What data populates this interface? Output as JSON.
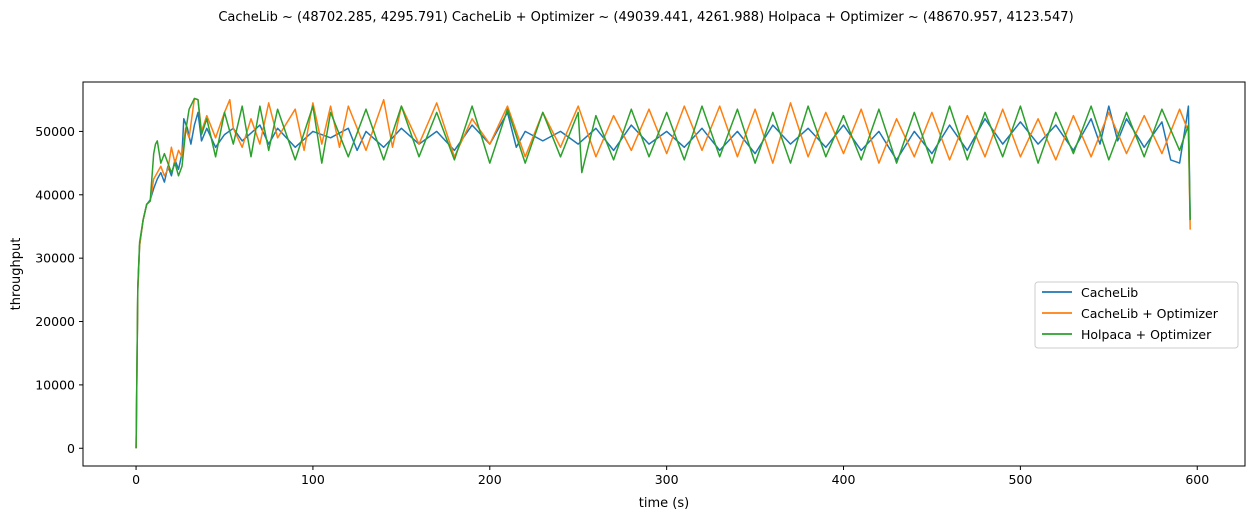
{
  "chart_data": {
    "type": "line",
    "title": "CacheLib ~ (48702.285, 4295.791)   CacheLib + Optimizer ~ (49039.441, 4261.988)   Holpaca + Optimizer ~ (48670.957, 4123.547)",
    "xlabel": "time (s)",
    "ylabel": "throughput",
    "xlim": [
      -30,
      627
    ],
    "ylim": [
      -2800,
      57800
    ],
    "xticks": [
      0,
      100,
      200,
      300,
      400,
      500,
      600
    ],
    "yticks": [
      0,
      10000,
      20000,
      30000,
      40000,
      50000
    ],
    "grid": false,
    "legend_position": "center-right",
    "series": [
      {
        "name": "CacheLib",
        "color": "#1f77b4",
        "points": [
          [
            0,
            0
          ],
          [
            1,
            25000
          ],
          [
            2,
            32000
          ],
          [
            4,
            36000
          ],
          [
            6,
            38500
          ],
          [
            8,
            39200
          ],
          [
            10,
            41000
          ],
          [
            12,
            42500
          ],
          [
            14,
            43500
          ],
          [
            16,
            42000
          ],
          [
            18,
            44500
          ],
          [
            20,
            43000
          ],
          [
            22,
            45500
          ],
          [
            24,
            44000
          ],
          [
            26,
            46500
          ],
          [
            27,
            52000
          ],
          [
            29,
            50500
          ],
          [
            31,
            48000
          ],
          [
            33,
            51000
          ],
          [
            35,
            53000
          ],
          [
            37,
            48500
          ],
          [
            40,
            50500
          ],
          [
            45,
            47500
          ],
          [
            50,
            49500
          ],
          [
            55,
            50500
          ],
          [
            60,
            48500
          ],
          [
            70,
            51000
          ],
          [
            75,
            48000
          ],
          [
            80,
            50500
          ],
          [
            90,
            47500
          ],
          [
            100,
            50000
          ],
          [
            110,
            49000
          ],
          [
            120,
            50500
          ],
          [
            125,
            47000
          ],
          [
            130,
            50000
          ],
          [
            140,
            47500
          ],
          [
            150,
            50500
          ],
          [
            160,
            48000
          ],
          [
            170,
            50000
          ],
          [
            180,
            47000
          ],
          [
            190,
            51000
          ],
          [
            200,
            48000
          ],
          [
            210,
            53000
          ],
          [
            215,
            47500
          ],
          [
            220,
            50000
          ],
          [
            230,
            48500
          ],
          [
            240,
            50000
          ],
          [
            250,
            48000
          ],
          [
            260,
            50500
          ],
          [
            270,
            47000
          ],
          [
            280,
            51000
          ],
          [
            290,
            48000
          ],
          [
            300,
            50000
          ],
          [
            310,
            47500
          ],
          [
            320,
            50500
          ],
          [
            330,
            47000
          ],
          [
            340,
            50000
          ],
          [
            350,
            46500
          ],
          [
            360,
            51000
          ],
          [
            370,
            48000
          ],
          [
            380,
            50500
          ],
          [
            390,
            47500
          ],
          [
            400,
            51000
          ],
          [
            410,
            47000
          ],
          [
            420,
            50000
          ],
          [
            430,
            45500
          ],
          [
            440,
            50000
          ],
          [
            450,
            46500
          ],
          [
            460,
            51000
          ],
          [
            470,
            47000
          ],
          [
            480,
            52000
          ],
          [
            490,
            48000
          ],
          [
            500,
            51500
          ],
          [
            510,
            48000
          ],
          [
            520,
            51000
          ],
          [
            530,
            47000
          ],
          [
            540,
            52000
          ],
          [
            545,
            48000
          ],
          [
            550,
            54000
          ],
          [
            555,
            48500
          ],
          [
            560,
            52000
          ],
          [
            570,
            47500
          ],
          [
            580,
            51500
          ],
          [
            585,
            45500
          ],
          [
            590,
            45000
          ],
          [
            594,
            52000
          ],
          [
            595,
            54000
          ],
          [
            596,
            36000
          ]
        ]
      },
      {
        "name": "CacheLib + Optimizer",
        "color": "#ff7f0e",
        "points": [
          [
            0,
            0
          ],
          [
            1,
            25000
          ],
          [
            2,
            32000
          ],
          [
            4,
            36000
          ],
          [
            6,
            38500
          ],
          [
            8,
            39000
          ],
          [
            10,
            42500
          ],
          [
            12,
            43500
          ],
          [
            14,
            44500
          ],
          [
            16,
            43000
          ],
          [
            18,
            44000
          ],
          [
            20,
            47500
          ],
          [
            22,
            45000
          ],
          [
            24,
            47000
          ],
          [
            26,
            46000
          ],
          [
            28,
            50500
          ],
          [
            30,
            49000
          ],
          [
            33,
            55200
          ],
          [
            35,
            55000
          ],
          [
            37,
            50000
          ],
          [
            40,
            52500
          ],
          [
            45,
            49000
          ],
          [
            50,
            53000
          ],
          [
            53,
            55000
          ],
          [
            55,
            50500
          ],
          [
            60,
            47500
          ],
          [
            65,
            52000
          ],
          [
            70,
            48000
          ],
          [
            75,
            54500
          ],
          [
            80,
            49000
          ],
          [
            90,
            53500
          ],
          [
            95,
            47000
          ],
          [
            100,
            54500
          ],
          [
            105,
            48000
          ],
          [
            110,
            54000
          ],
          [
            115,
            47500
          ],
          [
            120,
            54000
          ],
          [
            130,
            47000
          ],
          [
            140,
            55000
          ],
          [
            145,
            47500
          ],
          [
            150,
            54000
          ],
          [
            160,
            48000
          ],
          [
            170,
            54500
          ],
          [
            180,
            46000
          ],
          [
            190,
            52000
          ],
          [
            200,
            48000
          ],
          [
            210,
            54000
          ],
          [
            220,
            46000
          ],
          [
            230,
            53000
          ],
          [
            240,
            47500
          ],
          [
            250,
            54000
          ],
          [
            260,
            46000
          ],
          [
            270,
            52500
          ],
          [
            280,
            47000
          ],
          [
            290,
            53500
          ],
          [
            300,
            46500
          ],
          [
            310,
            54000
          ],
          [
            320,
            47000
          ],
          [
            330,
            54000
          ],
          [
            340,
            46000
          ],
          [
            350,
            53500
          ],
          [
            360,
            45000
          ],
          [
            370,
            54500
          ],
          [
            380,
            46000
          ],
          [
            390,
            53000
          ],
          [
            400,
            46500
          ],
          [
            410,
            53500
          ],
          [
            420,
            45000
          ],
          [
            430,
            52000
          ],
          [
            440,
            46000
          ],
          [
            450,
            53000
          ],
          [
            460,
            45500
          ],
          [
            470,
            52500
          ],
          [
            480,
            46000
          ],
          [
            490,
            53500
          ],
          [
            500,
            46000
          ],
          [
            510,
            52000
          ],
          [
            520,
            45500
          ],
          [
            530,
            52500
          ],
          [
            540,
            46000
          ],
          [
            550,
            53000
          ],
          [
            560,
            46500
          ],
          [
            570,
            52500
          ],
          [
            580,
            46500
          ],
          [
            590,
            53500
          ],
          [
            595,
            50000
          ],
          [
            596,
            34500
          ]
        ]
      },
      {
        "name": "Holpaca + Optimizer",
        "color": "#2ca02c",
        "points": [
          [
            0,
            0
          ],
          [
            1,
            25500
          ],
          [
            2,
            32500
          ],
          [
            4,
            36000
          ],
          [
            6,
            38500
          ],
          [
            8,
            39000
          ],
          [
            10,
            46500
          ],
          [
            11,
            48000
          ],
          [
            12,
            48500
          ],
          [
            14,
            45000
          ],
          [
            16,
            46500
          ],
          [
            18,
            45000
          ],
          [
            20,
            43500
          ],
          [
            22,
            45000
          ],
          [
            24,
            43000
          ],
          [
            26,
            44500
          ],
          [
            28,
            50000
          ],
          [
            30,
            53500
          ],
          [
            33,
            55200
          ],
          [
            35,
            55000
          ],
          [
            37,
            49500
          ],
          [
            40,
            52000
          ],
          [
            45,
            46000
          ],
          [
            50,
            53000
          ],
          [
            55,
            48000
          ],
          [
            60,
            54000
          ],
          [
            65,
            46000
          ],
          [
            70,
            54000
          ],
          [
            75,
            47000
          ],
          [
            80,
            53500
          ],
          [
            90,
            45500
          ],
          [
            100,
            54000
          ],
          [
            105,
            45000
          ],
          [
            110,
            53000
          ],
          [
            120,
            46000
          ],
          [
            130,
            53500
          ],
          [
            140,
            45500
          ],
          [
            150,
            54000
          ],
          [
            160,
            46000
          ],
          [
            170,
            53000
          ],
          [
            180,
            45500
          ],
          [
            190,
            54000
          ],
          [
            200,
            45000
          ],
          [
            210,
            53500
          ],
          [
            220,
            45000
          ],
          [
            230,
            53000
          ],
          [
            240,
            46000
          ],
          [
            250,
            53000
          ],
          [
            252,
            43500
          ],
          [
            260,
            52500
          ],
          [
            270,
            45500
          ],
          [
            280,
            53500
          ],
          [
            290,
            46000
          ],
          [
            300,
            53000
          ],
          [
            310,
            45500
          ],
          [
            320,
            54000
          ],
          [
            330,
            46000
          ],
          [
            340,
            53500
          ],
          [
            350,
            45000
          ],
          [
            360,
            53000
          ],
          [
            370,
            45000
          ],
          [
            380,
            54000
          ],
          [
            390,
            46000
          ],
          [
            400,
            52500
          ],
          [
            410,
            45500
          ],
          [
            420,
            53500
          ],
          [
            430,
            45000
          ],
          [
            440,
            53000
          ],
          [
            450,
            45000
          ],
          [
            460,
            54000
          ],
          [
            470,
            45500
          ],
          [
            480,
            53000
          ],
          [
            490,
            46000
          ],
          [
            500,
            54000
          ],
          [
            510,
            45000
          ],
          [
            520,
            53000
          ],
          [
            530,
            46500
          ],
          [
            540,
            54000
          ],
          [
            550,
            45500
          ],
          [
            560,
            53000
          ],
          [
            570,
            46000
          ],
          [
            580,
            53500
          ],
          [
            590,
            47000
          ],
          [
            595,
            51000
          ],
          [
            596,
            36000
          ]
        ]
      }
    ]
  }
}
